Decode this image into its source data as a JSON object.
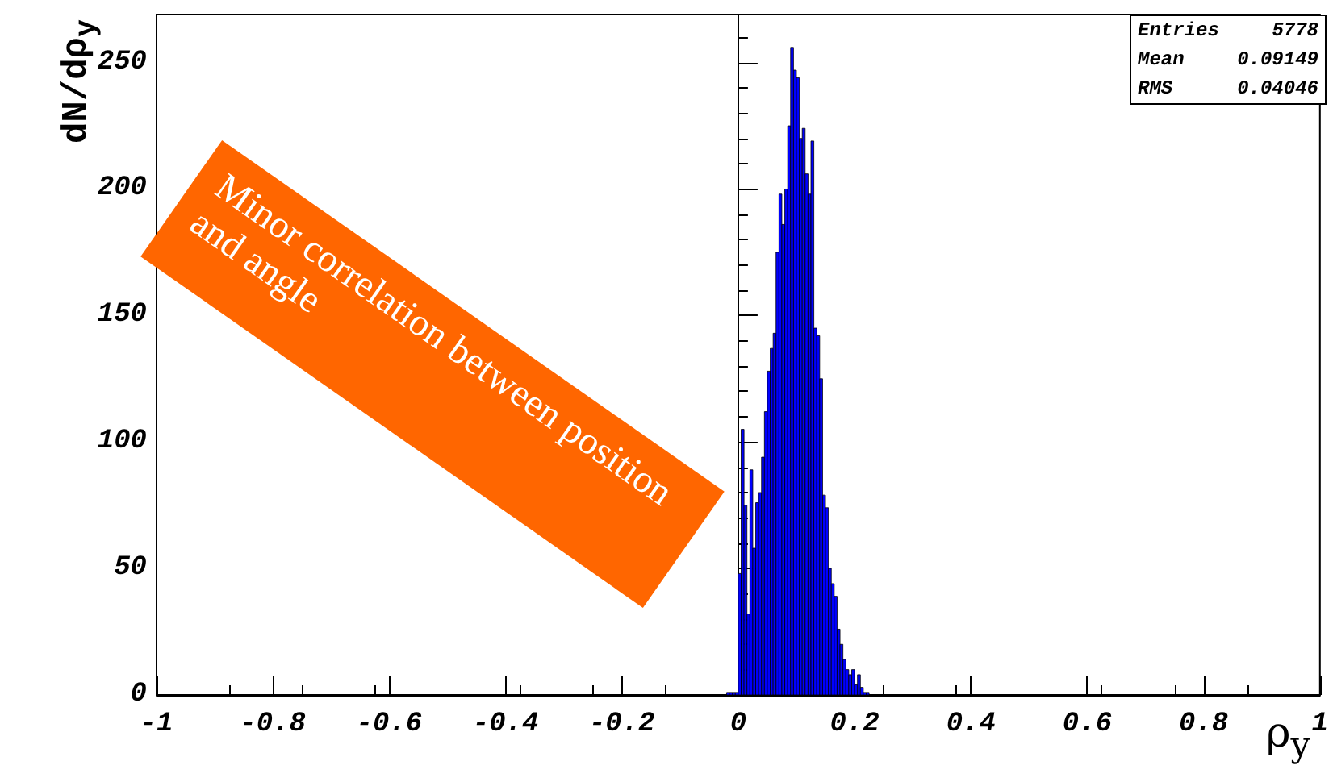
{
  "chart_data": {
    "type": "histogram",
    "xlabel": "ρ$_{y}$",
    "ylabel": "dN/dρ$_{y}$",
    "bins": [
      -0.02,
      -0.015,
      -0.01,
      -0.005,
      0,
      0.005,
      0.01,
      0.015,
      0.02,
      0.025,
      0.03,
      0.035,
      0.04,
      0.045,
      0.05,
      0.055,
      0.06,
      0.065,
      0.07,
      0.075,
      0.08,
      0.085,
      0.09,
      0.095,
      0.1,
      0.105,
      0.11,
      0.115,
      0.12,
      0.125,
      0.13,
      0.135,
      0.14,
      0.145,
      0.15,
      0.155,
      0.16,
      0.165,
      0.17,
      0.175,
      0.18,
      0.185,
      0.19,
      0.195,
      0.2,
      0.205,
      0.21,
      0.215,
      0.22,
      0.225
    ],
    "values": [
      1,
      1,
      1,
      1,
      48,
      105,
      75,
      32,
      89,
      58,
      76,
      80,
      94,
      112,
      128,
      137,
      143,
      175,
      198,
      186,
      200,
      225,
      256,
      247,
      244,
      220,
      224,
      206,
      198,
      219,
      145,
      142,
      125,
      79,
      74,
      50,
      44,
      39,
      26,
      20,
      14,
      10,
      8,
      10,
      4,
      8,
      3,
      1,
      1
    ],
    "color": "#0000ff",
    "xlim": [
      -1,
      1
    ],
    "xticks": [
      -1,
      -0.8,
      -0.6,
      -0.4,
      -0.2,
      0,
      0.2,
      0.4,
      0.6,
      0.8,
      1
    ],
    "ylim": [
      0,
      269
    ],
    "yticks": [
      0,
      50,
      100,
      150,
      200,
      250
    ],
    "annotations": [
      "Minor correlation between position and angle",
      "Entries 5778",
      "Mean 0.09149",
      "RMS 0.04046"
    ]
  }
}
